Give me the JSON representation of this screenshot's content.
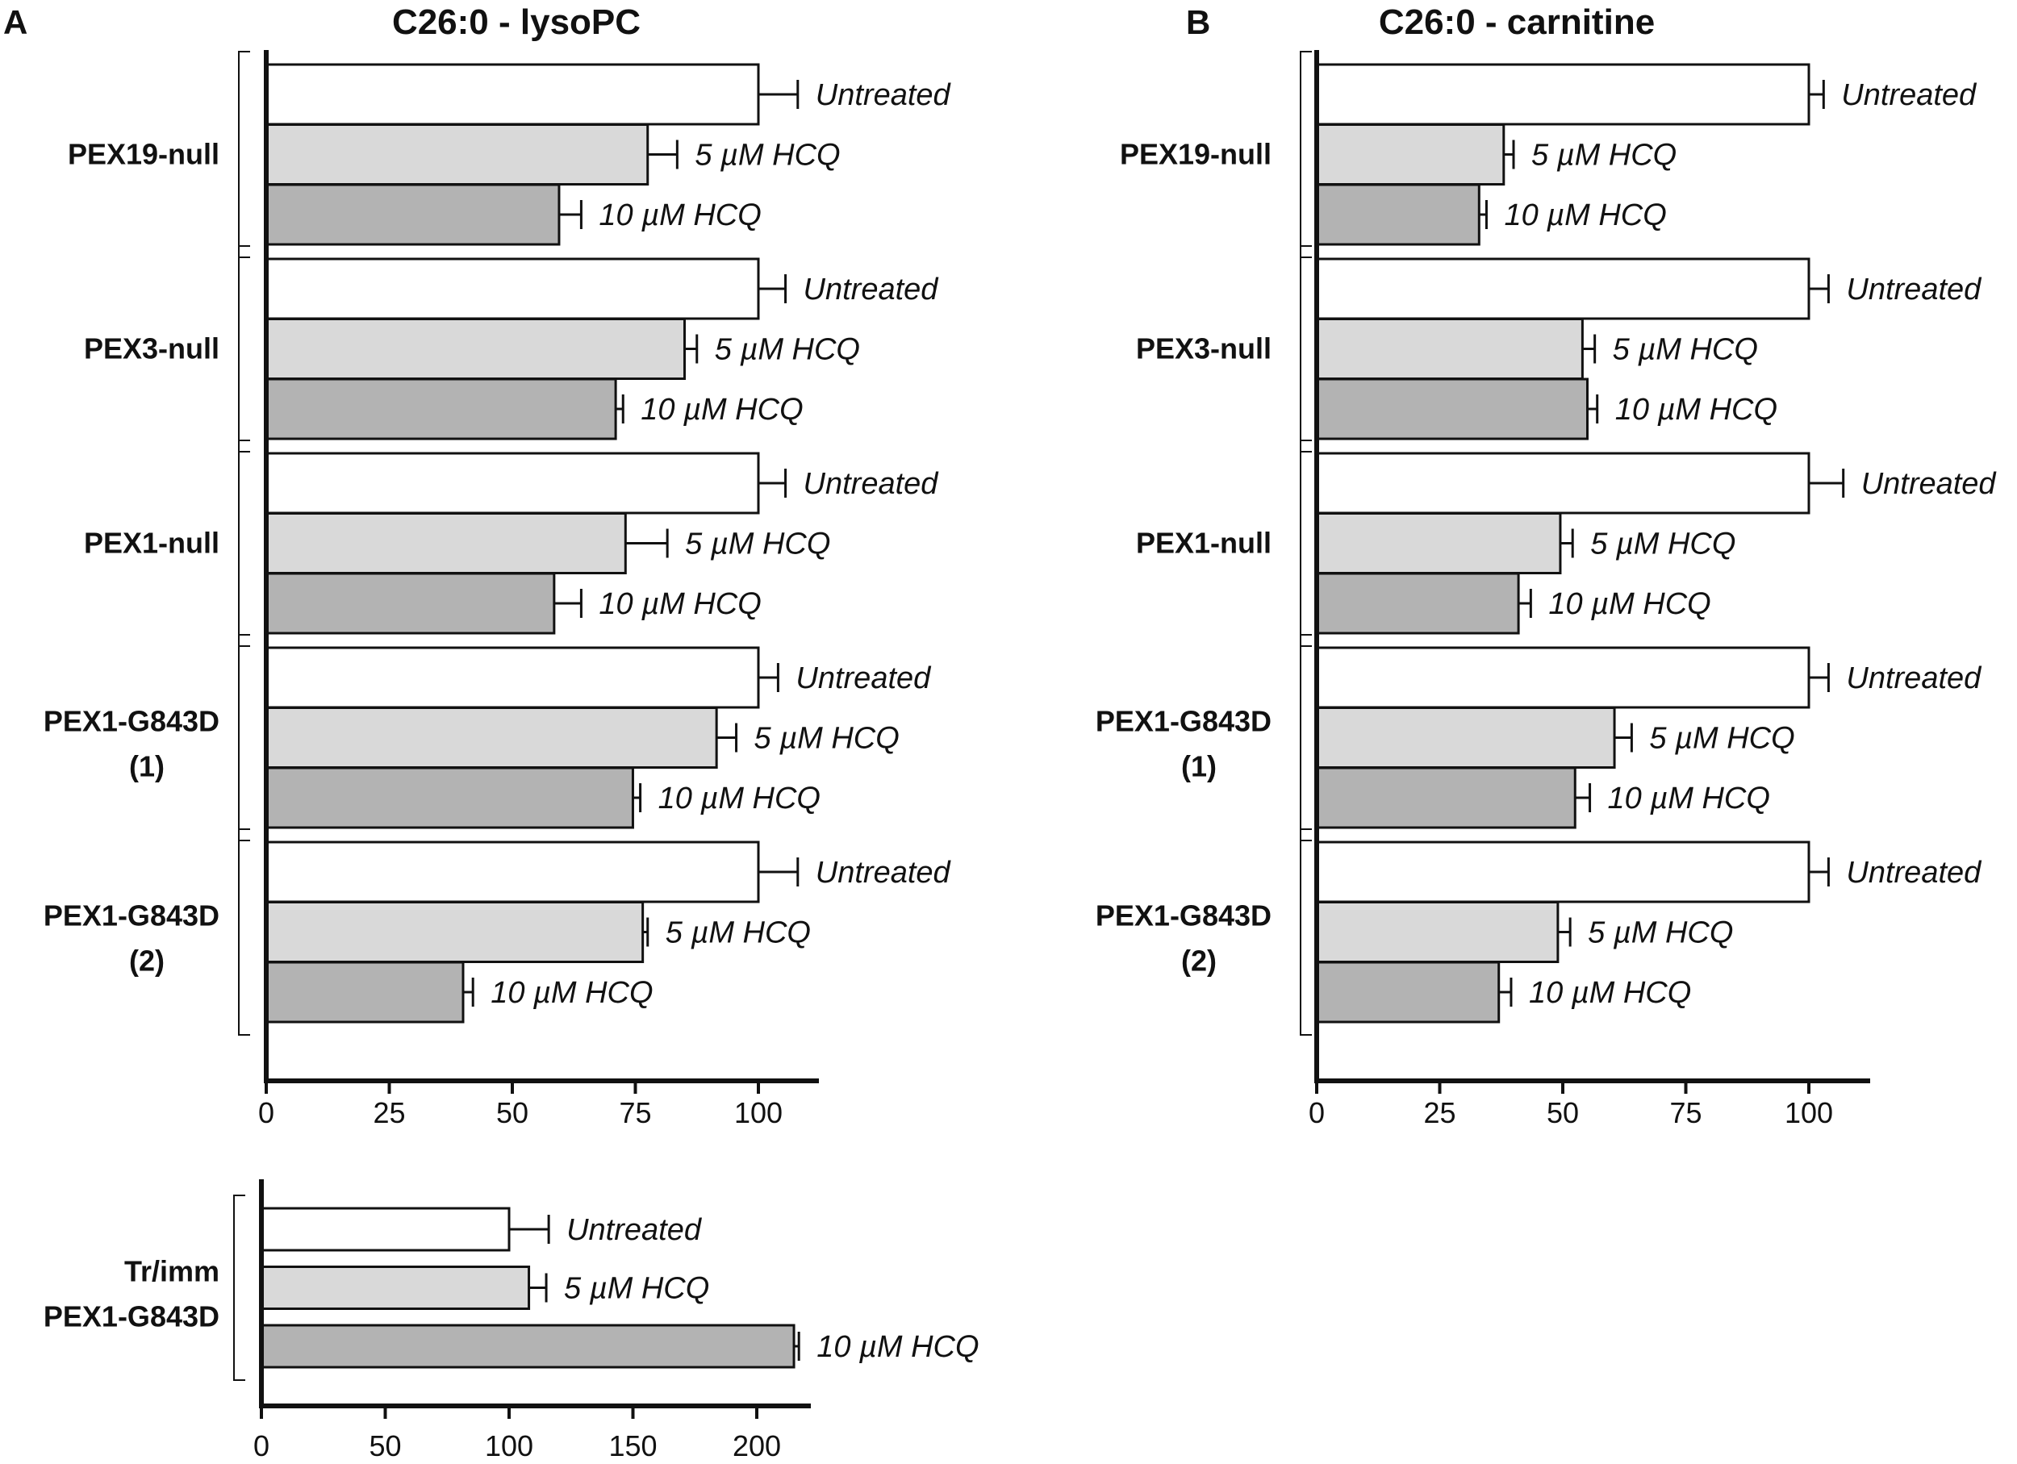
{
  "colors": {
    "untreated": "#ffffff",
    "hcq_5": "#d9d9d9",
    "hcq_10": "#b3b3b3",
    "stroke": "#111111"
  },
  "chart_data": [
    {
      "panel": "A",
      "type": "bar",
      "orientation": "horizontal",
      "title": "C26:0 - lysoPC",
      "xlabel": "",
      "ylabel": "",
      "xlim": [
        0,
        110
      ],
      "xticks": [
        "0",
        "25",
        "50",
        "75",
        "100"
      ],
      "grid": false,
      "groups": [
        {
          "name": "PEX19-null",
          "bars": [
            {
              "label": "Untreated",
              "value": 100,
              "error": 8
            },
            {
              "label": "5 µM HCQ",
              "value": 77.5,
              "error": 6
            },
            {
              "label": "10 µM HCQ",
              "value": 59.5,
              "error": 4.5
            }
          ]
        },
        {
          "name": "PEX3-null",
          "bars": [
            {
              "label": "Untreated",
              "value": 100,
              "error": 5.5
            },
            {
              "label": "5 µM HCQ",
              "value": 85,
              "error": 2.5
            },
            {
              "label": "10 µM HCQ",
              "value": 71,
              "error": 1.5
            }
          ]
        },
        {
          "name": "PEX1-null",
          "bars": [
            {
              "label": "Untreated",
              "value": 100,
              "error": 5.5
            },
            {
              "label": "5 µM HCQ",
              "value": 73,
              "error": 8.5
            },
            {
              "label": "10 µM HCQ",
              "value": 58.5,
              "error": 5.5
            }
          ]
        },
        {
          "name": "PEX1-G843D",
          "name2": "(1)",
          "bars": [
            {
              "label": "Untreated",
              "value": 100,
              "error": 4
            },
            {
              "label": "5 µM HCQ",
              "value": 91.5,
              "error": 4
            },
            {
              "label": "10 µM HCQ",
              "value": 74.5,
              "error": 1.5
            }
          ]
        },
        {
          "name": "PEX1-G843D",
          "name2": "(2)",
          "bars": [
            {
              "label": "Untreated",
              "value": 100,
              "error": 8
            },
            {
              "label": "5 µM HCQ",
              "value": 76.5,
              "error": 1
            },
            {
              "label": "10 µM HCQ",
              "value": 40,
              "error": 2
            }
          ]
        }
      ]
    },
    {
      "panel": "B",
      "type": "bar",
      "orientation": "horizontal",
      "title": "C26:0 - carnitine",
      "xlabel": "",
      "ylabel": "",
      "xlim": [
        0,
        110
      ],
      "xticks": [
        "0",
        "25",
        "50",
        "75",
        "100"
      ],
      "grid": false,
      "groups": [
        {
          "name": "PEX19-null",
          "bars": [
            {
              "label": "Untreated",
              "value": 100,
              "error": 3
            },
            {
              "label": "5 µM HCQ",
              "value": 38,
              "error": 2
            },
            {
              "label": "10 µM HCQ",
              "value": 33,
              "error": 1.5
            }
          ]
        },
        {
          "name": "PEX3-null",
          "bars": [
            {
              "label": "Untreated",
              "value": 100,
              "error": 4
            },
            {
              "label": "5 µM HCQ",
              "value": 54,
              "error": 2.5
            },
            {
              "label": "10 µM HCQ",
              "value": 55,
              "error": 2
            }
          ]
        },
        {
          "name": "PEX1-null",
          "bars": [
            {
              "label": "Untreated",
              "value": 100,
              "error": 7
            },
            {
              "label": "5 µM HCQ",
              "value": 49.5,
              "error": 2.5
            },
            {
              "label": "10 µM HCQ",
              "value": 41,
              "error": 2.5
            }
          ]
        },
        {
          "name": "PEX1-G843D",
          "name2": "(1)",
          "bars": [
            {
              "label": "Untreated",
              "value": 100,
              "error": 4
            },
            {
              "label": "5 µM HCQ",
              "value": 60.5,
              "error": 3.5
            },
            {
              "label": "10 µM HCQ",
              "value": 52.5,
              "error": 3
            }
          ]
        },
        {
          "name": "PEX1-G843D",
          "name2": "(2)",
          "bars": [
            {
              "label": "Untreated",
              "value": 100,
              "error": 4
            },
            {
              "label": "5 µM HCQ",
              "value": 49,
              "error": 2.5
            },
            {
              "label": "10 µM HCQ",
              "value": 37,
              "error": 2.5
            }
          ]
        }
      ]
    },
    {
      "panel": "A-inset",
      "type": "bar",
      "orientation": "horizontal",
      "title": "",
      "xlabel": "",
      "ylabel": "",
      "xlim": [
        0,
        225
      ],
      "xticks": [
        "0",
        "50",
        "100",
        "150",
        "200"
      ],
      "grid": false,
      "groups": [
        {
          "name": "Tr/imm",
          "name2": "PEX1-G843D",
          "bars": [
            {
              "label": "Untreated",
              "value": 100,
              "error": 16
            },
            {
              "label": "5 µM HCQ",
              "value": 108,
              "error": 7
            },
            {
              "label": "10 µM HCQ",
              "value": 215,
              "error": 2
            }
          ]
        }
      ]
    }
  ],
  "panel_letters": [
    "A",
    "B"
  ]
}
